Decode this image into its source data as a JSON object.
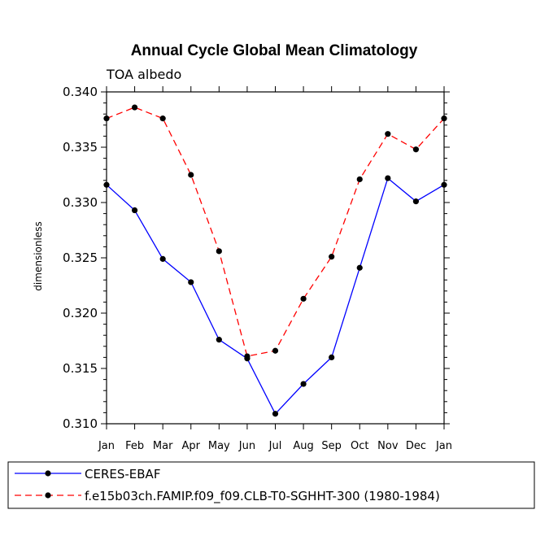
{
  "chart_data": {
    "type": "line",
    "title": "Annual Cycle Global Mean Climatology",
    "subtitle": "TOA albedo",
    "xlabel": "",
    "ylabel": "dimensionless",
    "categories": [
      "Jan",
      "Feb",
      "Mar",
      "Apr",
      "May",
      "Jun",
      "Jul",
      "Aug",
      "Sep",
      "Oct",
      "Nov",
      "Dec",
      "Jan"
    ],
    "ylim": [
      0.31,
      0.34
    ],
    "yticks": [
      0.31,
      0.315,
      0.32,
      0.325,
      0.33,
      0.335,
      0.34
    ],
    "ytick_labels": [
      "0.310",
      "0.315",
      "0.320",
      "0.325",
      "0.330",
      "0.335",
      "0.340"
    ],
    "grid": false,
    "legend_position": "bottom",
    "series": [
      {
        "name": "CERES-EBAF",
        "color": "#0000ff",
        "style": "solid",
        "values": [
          0.3316,
          0.3293,
          0.3249,
          0.3228,
          0.3176,
          0.3159,
          0.3109,
          0.3136,
          0.316,
          0.3241,
          0.3322,
          0.3301,
          0.3316
        ]
      },
      {
        "name": "f.e15b03ch.FAMIP.f09_f09.CLB-T0-SGHHT-300 (1980-1984)",
        "color": "#ff0000",
        "style": "dashed",
        "values": [
          0.3376,
          0.3386,
          0.3376,
          0.3325,
          0.3256,
          0.3161,
          0.3166,
          0.3213,
          0.3251,
          0.3321,
          0.3362,
          0.3348,
          0.3376
        ]
      }
    ]
  }
}
